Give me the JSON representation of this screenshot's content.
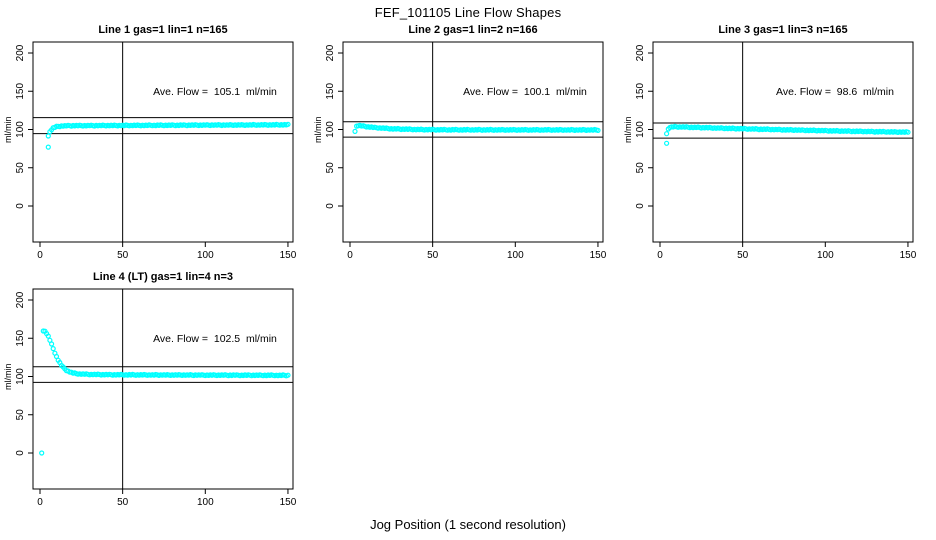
{
  "title": "FEF_101105  Line Flow Shapes",
  "xlabel": "Jog Position (1 second resolution)",
  "ylabel": "ml/min",
  "point_color": "#00ffff",
  "line_color": "#000000",
  "background_color": "#ffffff",
  "chart_data": [
    {
      "type": "scatter",
      "title": "Line 1 gas=1 lin=1 n=165",
      "annotation": "Ave. Flow =  105.1  ml/min",
      "ave_flow_ml_min": 105.1,
      "n": 165,
      "xticks": [
        0,
        50,
        100,
        150
      ],
      "yticks": [
        0,
        50,
        100,
        150,
        200
      ],
      "xlim": [
        0,
        155
      ],
      "ylim": [
        0,
        210
      ],
      "vline": 50,
      "hlines": [
        115.6,
        94.6
      ],
      "outliers": [
        [
          5,
          77
        ]
      ],
      "keyframes": [
        [
          5,
          92
        ],
        [
          6,
          97
        ],
        [
          7,
          100
        ],
        [
          8,
          102
        ],
        [
          10,
          103.8
        ],
        [
          13,
          104.6
        ],
        [
          18,
          105
        ],
        [
          40,
          105.2
        ],
        [
          80,
          105.6
        ],
        [
          120,
          105.9
        ],
        [
          150,
          106.2
        ]
      ]
    },
    {
      "type": "scatter",
      "title": "Line 2 gas=1 lin=2 n=166",
      "annotation": "Ave. Flow =  100.1  ml/min",
      "ave_flow_ml_min": 100.1,
      "n": 166,
      "xticks": [
        0,
        50,
        100,
        150
      ],
      "yticks": [
        0,
        50,
        100,
        150,
        200
      ],
      "xlim": [
        0,
        155
      ],
      "ylim": [
        0,
        210
      ],
      "vline": 50,
      "hlines": [
        110.1,
        90.1
      ],
      "outliers": [],
      "keyframes": [
        [
          3,
          98
        ],
        [
          4,
          104.2
        ],
        [
          5,
          105.2
        ],
        [
          7,
          104.8
        ],
        [
          10,
          103.8
        ],
        [
          15,
          102.5
        ],
        [
          25,
          101
        ],
        [
          40,
          100
        ],
        [
          60,
          99.6
        ],
        [
          100,
          99.5
        ],
        [
          150,
          99.4
        ]
      ]
    },
    {
      "type": "scatter",
      "title": "Line 3 gas=1 lin=3 n=165",
      "annotation": "Ave. Flow =  98.6  ml/min",
      "ave_flow_ml_min": 98.6,
      "n": 165,
      "xticks": [
        0,
        50,
        100,
        150
      ],
      "yticks": [
        0,
        50,
        100,
        150,
        200
      ],
      "xlim": [
        0,
        155
      ],
      "ylim": [
        0,
        210
      ],
      "vline": 50,
      "hlines": [
        108.5,
        88.7
      ],
      "outliers": [
        [
          4,
          82
        ]
      ],
      "keyframes": [
        [
          4,
          95
        ],
        [
          5,
          100.5
        ],
        [
          6,
          103
        ],
        [
          9,
          103.6
        ],
        [
          15,
          103.2
        ],
        [
          30,
          102.2
        ],
        [
          50,
          101
        ],
        [
          80,
          99.4
        ],
        [
          110,
          98
        ],
        [
          130,
          97.2
        ],
        [
          150,
          96.5
        ]
      ]
    },
    {
      "type": "scatter",
      "title": "Line 4 (LT) gas=1 lin=4 n=3",
      "annotation": "Ave. Flow =  102.5  ml/min",
      "ave_flow_ml_min": 102.5,
      "n": 3,
      "xticks": [
        0,
        50,
        100,
        150
      ],
      "yticks": [
        0,
        50,
        100,
        150,
        200
      ],
      "xlim": [
        0,
        155
      ],
      "ylim": [
        0,
        210
      ],
      "vline": 50,
      "hlines": [
        112.8,
        92.3
      ],
      "outliers": [
        [
          1,
          0
        ]
      ],
      "keyframes": [
        [
          2,
          160
        ],
        [
          3,
          159
        ],
        [
          4,
          156.5
        ],
        [
          5,
          152.5
        ],
        [
          6,
          147.5
        ],
        [
          7,
          142
        ],
        [
          8,
          136.5
        ],
        [
          9,
          131
        ],
        [
          10,
          126
        ],
        [
          11,
          121.5
        ],
        [
          12,
          118
        ],
        [
          13,
          114.5
        ],
        [
          14,
          112
        ],
        [
          15,
          110
        ],
        [
          16,
          108.3
        ],
        [
          17,
          107
        ],
        [
          18,
          106
        ],
        [
          19,
          105.2
        ],
        [
          20,
          104.6
        ],
        [
          22,
          103.8
        ],
        [
          25,
          103.2
        ],
        [
          30,
          102.8
        ],
        [
          40,
          102.4
        ],
        [
          60,
          102.1
        ],
        [
          90,
          101.9
        ],
        [
          120,
          101.7
        ],
        [
          150,
          101.5
        ]
      ]
    }
  ]
}
